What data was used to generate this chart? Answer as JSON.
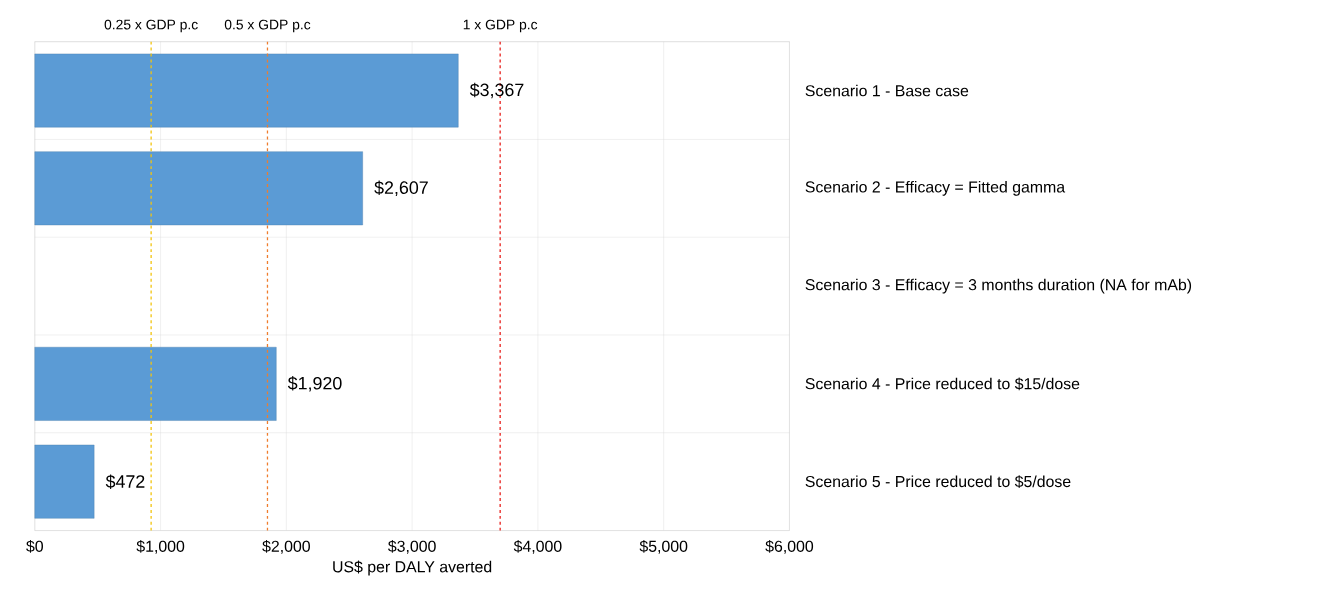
{
  "chart_data": {
    "type": "bar",
    "orientation": "horizontal",
    "categories": [
      "Scenario 1 - Base case",
      "Scenario 2 - Efficacy = Fitted gamma",
      "Scenario 3 - Efficacy = 3 months duration (NA for mAb)",
      "Scenario 4 - Price reduced to $15/dose",
      "Scenario 5 - Price reduced to $5/dose"
    ],
    "values": [
      3367,
      2607,
      null,
      1920,
      472
    ],
    "value_labels": [
      "$3,367",
      "$2,607",
      null,
      "$1,920",
      "$472"
    ],
    "color": "#5b9bd5",
    "xlabel": "US$ per DALY averted",
    "xlim": [
      0,
      6000
    ],
    "xticks": [
      {
        "value": 0,
        "label": "$0"
      },
      {
        "value": 1000,
        "label": "$1,000"
      },
      {
        "value": 2000,
        "label": "$2,000"
      },
      {
        "value": 3000,
        "label": "$3,000"
      },
      {
        "value": 4000,
        "label": "$4,000"
      },
      {
        "value": 5000,
        "label": "$5,000"
      },
      {
        "value": 6000,
        "label": "$6,000"
      }
    ],
    "grid": true,
    "ref_lines": [
      {
        "axis": "x",
        "value": 925,
        "label": "0.25 x GDP p.c",
        "color": "#f2c40f",
        "line_style": "dashed"
      },
      {
        "axis": "x",
        "value": 1850,
        "label": "0.5 x GDP p.c",
        "color": "#ef7d2d",
        "line_style": "dashed"
      },
      {
        "axis": "x",
        "value": 3700,
        "label": "1 x GDP p.c",
        "color": "#e8201c",
        "line_style": "dashed"
      }
    ]
  }
}
